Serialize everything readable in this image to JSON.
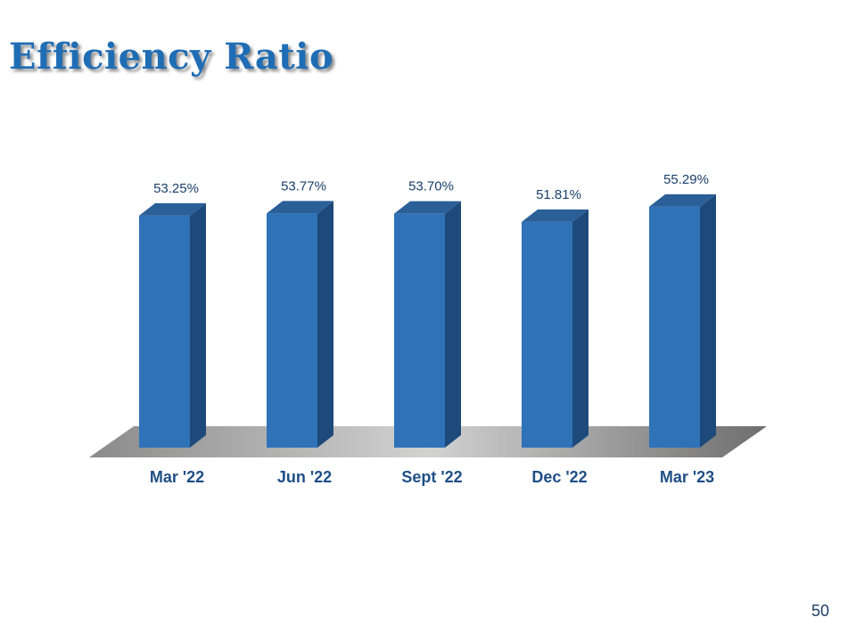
{
  "slide": {
    "title": "Efficiency Ratio",
    "page_number": "50"
  },
  "colors": {
    "bar_front": "#2f72b8",
    "bar_side": "#1d4a7a",
    "bar_top": "#2a5f98",
    "title": "#1f6db5",
    "value_text": "#1a3f6b",
    "tick_text": "#1f4f86"
  },
  "chart_data": {
    "type": "bar",
    "style": "3d-column",
    "categories": [
      "Mar '22",
      "Jun '22",
      "Sept '22",
      "Dec '22",
      "Mar '23"
    ],
    "values": [
      53.25,
      53.77,
      53.7,
      51.81,
      55.29
    ],
    "value_labels": [
      "53.25%",
      "53.77%",
      "53.70%",
      "51.81%",
      "55.29%"
    ],
    "unit": "%",
    "title": "",
    "xlabel": "",
    "ylabel": "",
    "ylim": [
      0,
      61
    ],
    "grid": false,
    "legend": "none"
  }
}
